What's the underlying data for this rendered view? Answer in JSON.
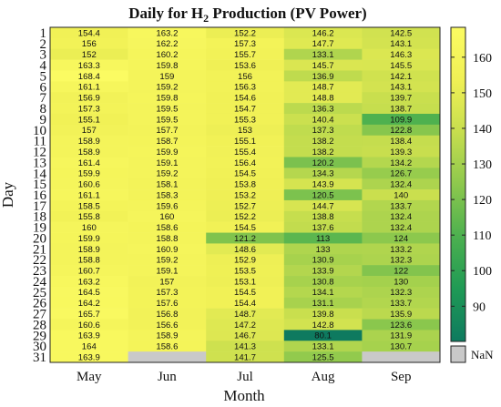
{
  "chart_data": {
    "type": "heatmap",
    "title_main": "Daily for H",
    "title_subscript": "2",
    "title_rest": " Production (PV Power)",
    "xlabel": "Month",
    "ylabel": "Day",
    "x": [
      "May",
      "Jun",
      "Jul",
      "Aug",
      "Sep"
    ],
    "y": [
      "1",
      "2",
      "3",
      "4",
      "5",
      "6",
      "7",
      "8",
      "9",
      "10",
      "11",
      "12",
      "13",
      "14",
      "15",
      "16",
      "17",
      "18",
      "19",
      "20",
      "21",
      "22",
      "23",
      "24",
      "25",
      "26",
      "27",
      "28",
      "29",
      "30",
      "31"
    ],
    "values": [
      [
        154.4,
        163.2,
        152.2,
        146.2,
        142.5
      ],
      [
        156,
        162.2,
        157.3,
        147.7,
        143.1
      ],
      [
        152,
        160.2,
        155.7,
        133.1,
        146.3
      ],
      [
        163.3,
        159.8,
        153.6,
        145.7,
        145.5
      ],
      [
        168.4,
        159,
        156,
        136.9,
        142.1
      ],
      [
        161.1,
        159.2,
        156.3,
        148.7,
        143.1
      ],
      [
        156.9,
        159.8,
        154.6,
        148.8,
        139.7
      ],
      [
        157.3,
        159.5,
        154.7,
        136.3,
        138.7
      ],
      [
        155.1,
        159.5,
        155.3,
        140.4,
        109.9
      ],
      [
        157,
        157.7,
        153,
        137.3,
        122.8
      ],
      [
        158.9,
        158.7,
        155.1,
        138.2,
        138.4
      ],
      [
        158.9,
        159.9,
        155.4,
        138.2,
        139.3
      ],
      [
        161.4,
        159.1,
        156.4,
        120.2,
        134.2
      ],
      [
        159.9,
        159.2,
        154.5,
        134.3,
        126.7
      ],
      [
        160.6,
        158.1,
        153.8,
        143.9,
        132.4
      ],
      [
        161.1,
        158.3,
        153.2,
        120.5,
        140
      ],
      [
        158.5,
        159.6,
        152.7,
        144.7,
        133.7
      ],
      [
        155.8,
        160,
        152.2,
        138.8,
        132.4
      ],
      [
        160,
        158.6,
        154.5,
        137.6,
        132.4
      ],
      [
        159.9,
        158.8,
        121.2,
        113,
        124
      ],
      [
        158.9,
        160.9,
        148.6,
        133,
        133.2
      ],
      [
        158.8,
        159.2,
        152.9,
        130.9,
        132.3
      ],
      [
        160.7,
        159.1,
        153.5,
        133.9,
        122
      ],
      [
        163.2,
        157,
        153.1,
        130.8,
        130
      ],
      [
        164.5,
        157.3,
        154.5,
        134.1,
        132.3
      ],
      [
        164.2,
        157.6,
        154.4,
        131.1,
        133.7
      ],
      [
        165.7,
        156.8,
        148.7,
        139.8,
        135.9
      ],
      [
        160.6,
        156.6,
        147.2,
        142.8,
        123.6
      ],
      [
        163.9,
        158.9,
        146.7,
        80.1,
        131.9
      ],
      [
        164,
        158.6,
        141.3,
        133.1,
        130.7
      ],
      [
        163.9,
        null,
        141.7,
        125.5,
        null
      ]
    ],
    "colorbar": {
      "ticks": [
        90,
        100,
        110,
        120,
        130,
        140,
        150,
        160
      ],
      "min": 80.1,
      "max": 168.4,
      "stops": [
        "#0e7a5f",
        "#1f9a55",
        "#4cb04f",
        "#8dc84d",
        "#c7de4e",
        "#f0f055",
        "#fbfb62"
      ]
    },
    "nan_label": "NaN",
    "nan_color": "#c9c9c9"
  }
}
